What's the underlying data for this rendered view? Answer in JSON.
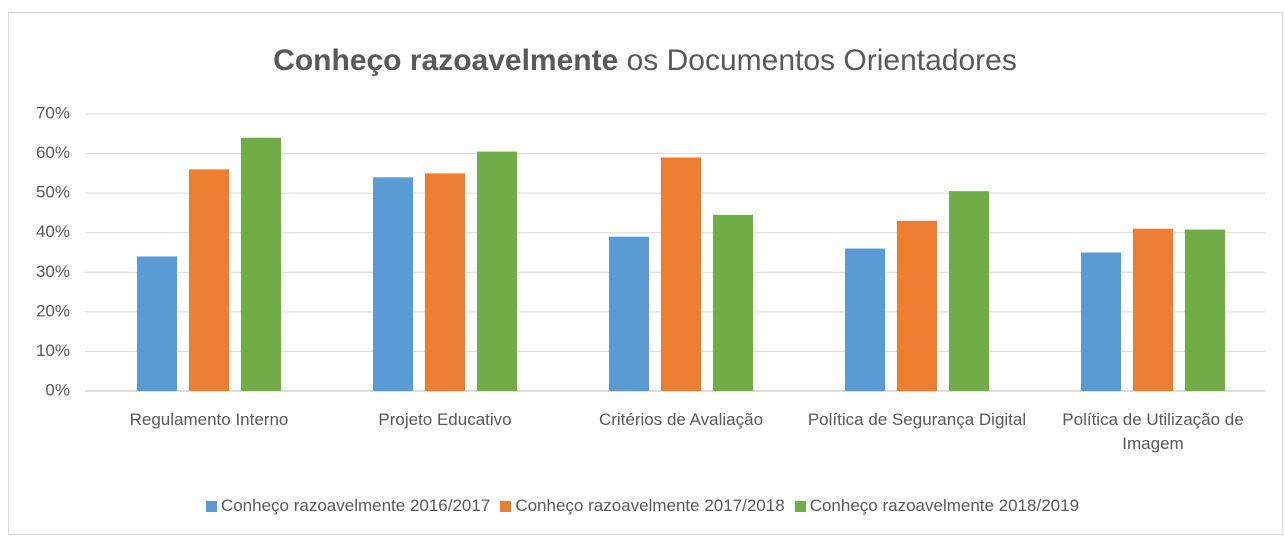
{
  "chart_data": {
    "type": "bar",
    "title": {
      "bold": "Conheço razoavelmente",
      "regular": "os Documentos Orientadores"
    },
    "categories": [
      "Regulamento Interno",
      "Projeto Educativo",
      "Critérios de Avaliação",
      "Política de Segurança Digital",
      "Política de Utilização de Imagem"
    ],
    "series": [
      {
        "name": "Conheço razoavelmente 2016/2017",
        "color": "#5b9bd5",
        "values": [
          34,
          54,
          39,
          36,
          35
        ]
      },
      {
        "name": "Conheço razoavelmente 2017/2018",
        "color": "#ed7d31",
        "values": [
          56,
          55,
          59,
          43,
          41
        ]
      },
      {
        "name": "Conheço razoavelmente 2018/2019",
        "color": "#70ad47",
        "values": [
          64,
          60.5,
          44.5,
          50.5,
          40.8
        ]
      }
    ],
    "ylim": [
      0,
      70
    ],
    "yticks": [
      {
        "value": 0,
        "label": "0%"
      },
      {
        "value": 10,
        "label": "10%"
      },
      {
        "value": 20,
        "label": "20%"
      },
      {
        "value": 30,
        "label": "30%"
      },
      {
        "value": 40,
        "label": "40%"
      },
      {
        "value": 50,
        "label": "50%"
      },
      {
        "value": 60,
        "label": "60%"
      },
      {
        "value": 70,
        "label": "70%"
      }
    ],
    "grid": true,
    "legend": "bottom"
  }
}
